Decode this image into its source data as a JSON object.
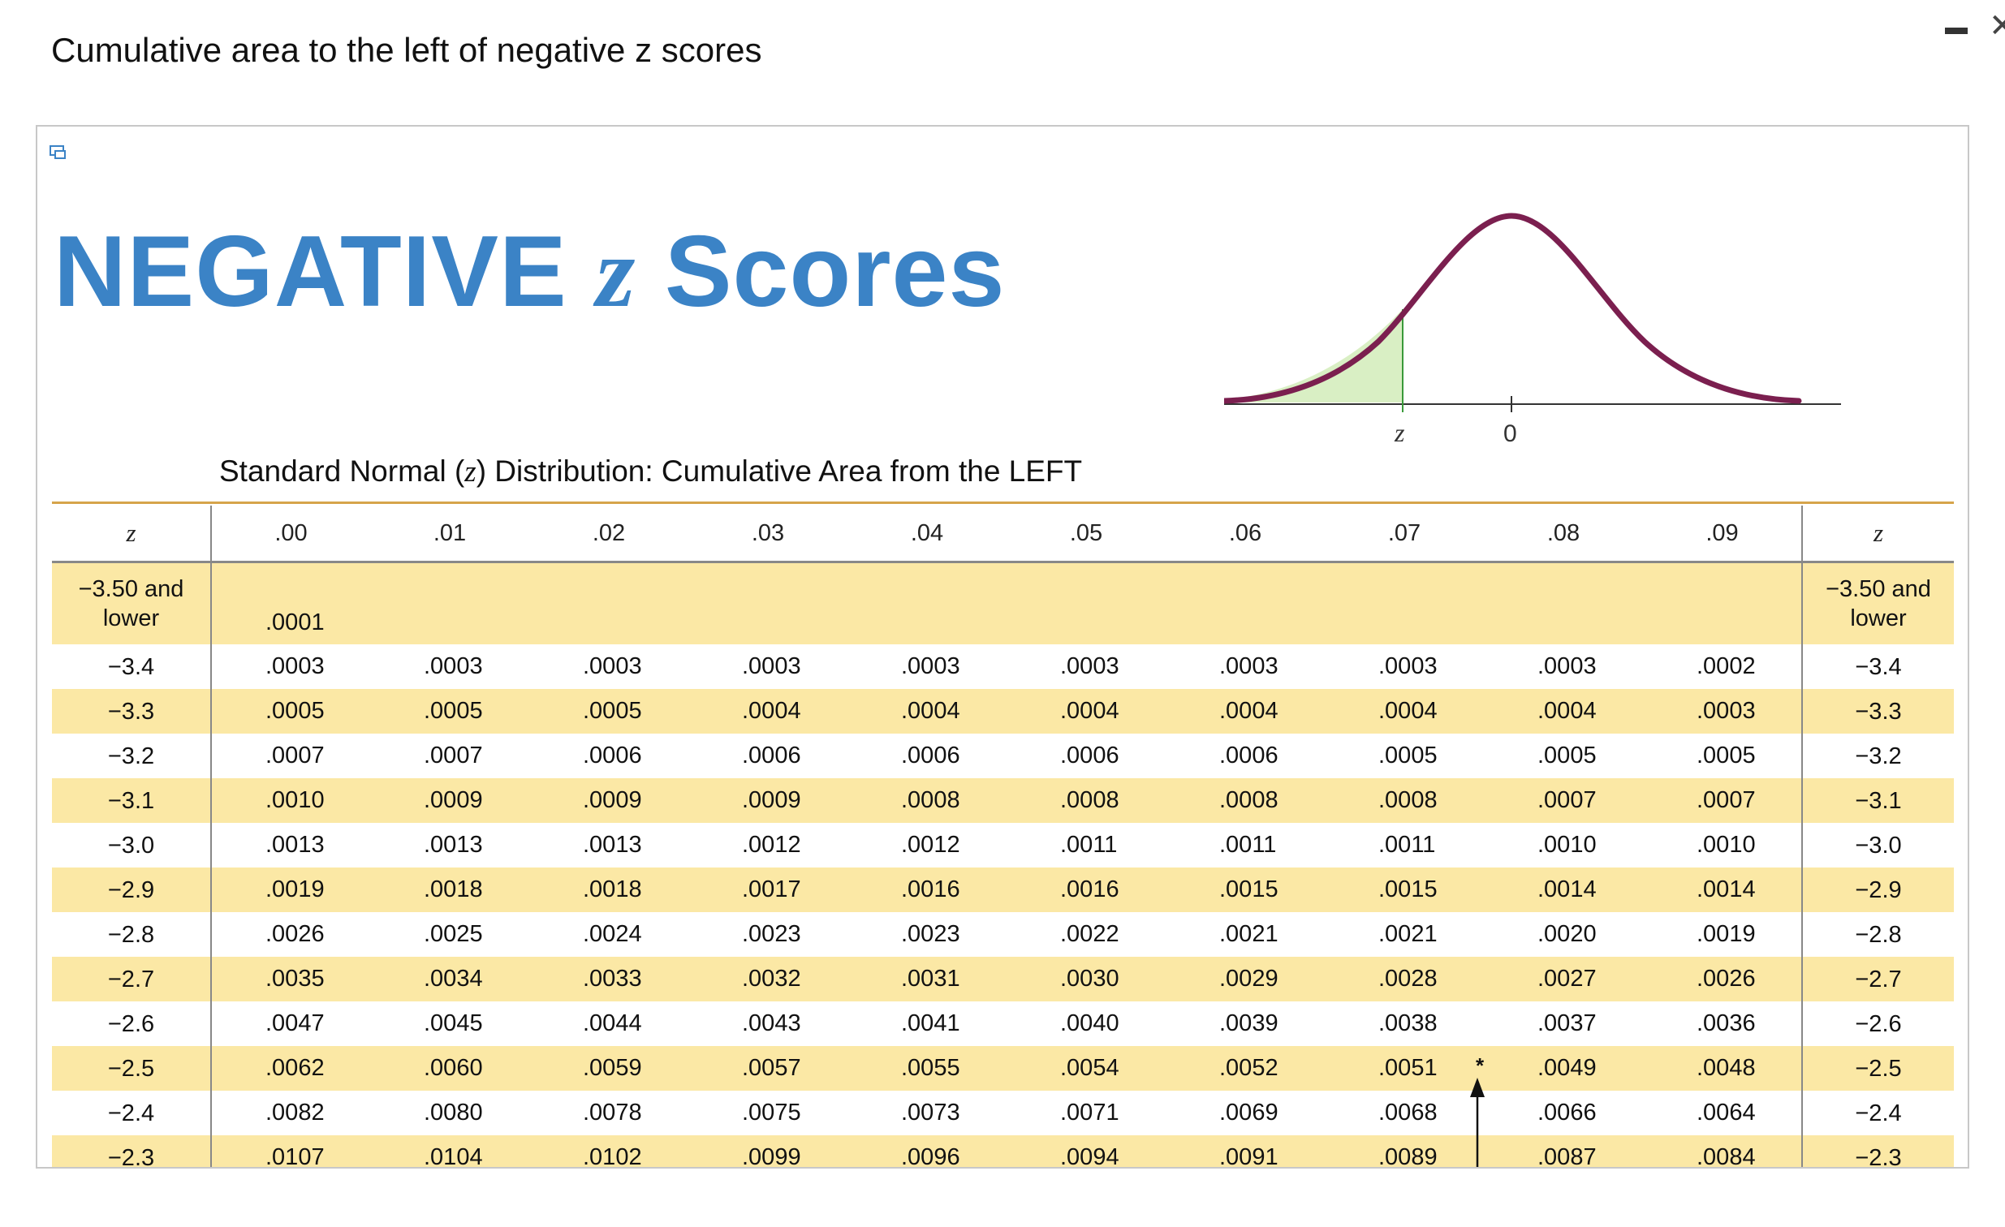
{
  "page": {
    "heading": "Cumulative area to the left of negative z scores"
  },
  "figure": {
    "title_word1": "NEGATIVE",
    "title_z": "z",
    "title_word2": "Scores",
    "graph": {
      "z_label": "z",
      "zero_label": "0"
    },
    "subtitle_pre": "Standard Normal (",
    "subtitle_z": "z",
    "subtitle_post": ") Distribution: Cumulative Area from the LEFT",
    "star": "*"
  },
  "colors": {
    "title": "#3b83c6",
    "curve": "#7b1f4f",
    "area_fill": "#d9efc4",
    "row_shade": "#fbe8a5",
    "rule": "#d6a44b"
  },
  "table": {
    "z_header": "z",
    "columns": [
      ".00",
      ".01",
      ".02",
      ".03",
      ".04",
      ".05",
      ".06",
      ".07",
      ".08",
      ".09"
    ],
    "rows": [
      {
        "z": [
          "−3.50 and",
          "lower"
        ],
        "values": [
          ".0001",
          "",
          "",
          "",
          "",
          "",
          "",
          "",
          "",
          ""
        ]
      },
      {
        "z": [
          "−3.4"
        ],
        "values": [
          ".0003",
          ".0003",
          ".0003",
          ".0003",
          ".0003",
          ".0003",
          ".0003",
          ".0003",
          ".0003",
          ".0002"
        ]
      },
      {
        "z": [
          "−3.3"
        ],
        "values": [
          ".0005",
          ".0005",
          ".0005",
          ".0004",
          ".0004",
          ".0004",
          ".0004",
          ".0004",
          ".0004",
          ".0003"
        ]
      },
      {
        "z": [
          "−3.2"
        ],
        "values": [
          ".0007",
          ".0007",
          ".0006",
          ".0006",
          ".0006",
          ".0006",
          ".0006",
          ".0005",
          ".0005",
          ".0005"
        ]
      },
      {
        "z": [
          "−3.1"
        ],
        "values": [
          ".0010",
          ".0009",
          ".0009",
          ".0009",
          ".0008",
          ".0008",
          ".0008",
          ".0008",
          ".0007",
          ".0007"
        ]
      },
      {
        "z": [
          "−3.0"
        ],
        "values": [
          ".0013",
          ".0013",
          ".0013",
          ".0012",
          ".0012",
          ".0011",
          ".0011",
          ".0011",
          ".0010",
          ".0010"
        ]
      },
      {
        "z": [
          "−2.9"
        ],
        "values": [
          ".0019",
          ".0018",
          ".0018",
          ".0017",
          ".0016",
          ".0016",
          ".0015",
          ".0015",
          ".0014",
          ".0014"
        ]
      },
      {
        "z": [
          "−2.8"
        ],
        "values": [
          ".0026",
          ".0025",
          ".0024",
          ".0023",
          ".0023",
          ".0022",
          ".0021",
          ".0021",
          ".0020",
          ".0019"
        ]
      },
      {
        "z": [
          "−2.7"
        ],
        "values": [
          ".0035",
          ".0034",
          ".0033",
          ".0032",
          ".0031",
          ".0030",
          ".0029",
          ".0028",
          ".0027",
          ".0026"
        ]
      },
      {
        "z": [
          "−2.6"
        ],
        "values": [
          ".0047",
          ".0045",
          ".0044",
          ".0043",
          ".0041",
          ".0040",
          ".0039",
          ".0038",
          ".0037",
          ".0036"
        ]
      },
      {
        "z": [
          "−2.5"
        ],
        "values": [
          ".0062",
          ".0060",
          ".0059",
          ".0057",
          ".0055",
          ".0054",
          ".0052",
          ".0051",
          ".0049",
          ".0048"
        ]
      },
      {
        "z": [
          "−2.4"
        ],
        "values": [
          ".0082",
          ".0080",
          ".0078",
          ".0075",
          ".0073",
          ".0071",
          ".0069",
          ".0068",
          ".0066",
          ".0064"
        ]
      },
      {
        "z": [
          "−2.3"
        ],
        "values": [
          ".0107",
          ".0104",
          ".0102",
          ".0099",
          ".0096",
          ".0094",
          ".0091",
          ".0089",
          ".0087",
          ".0084"
        ]
      }
    ]
  }
}
